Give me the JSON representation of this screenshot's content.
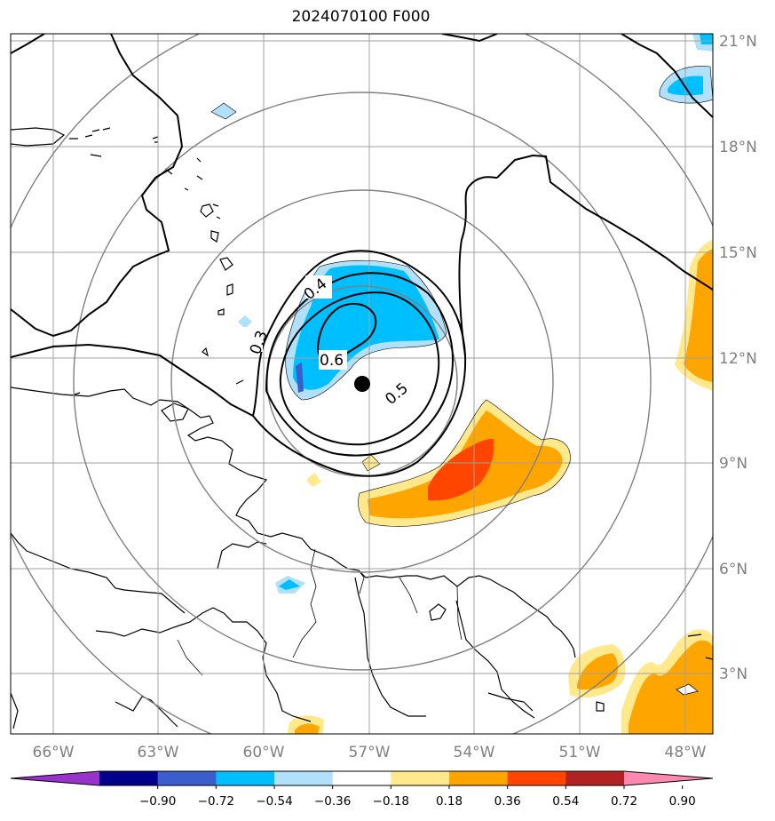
{
  "title": "2024070100 F000",
  "lon_labels": [
    "66°W",
    "63°W",
    "60°W",
    "57°W",
    "54°W",
    "51°W",
    "48°W"
  ],
  "lat_labels": [
    "21°N",
    "18°N",
    "15°N",
    "12°N",
    "9°N",
    "6°N",
    "3°N"
  ],
  "contour_labels": [
    "0.3",
    "0.4",
    "0.5",
    "0.6"
  ],
  "colorbar": {
    "ticks": [
      "−0.90",
      "−0.72",
      "−0.54",
      "−0.36",
      "−0.18",
      "0.18",
      "0.36",
      "0.54",
      "0.72",
      "0.90"
    ],
    "colors": [
      "#9932cc",
      "#00008b",
      "#3a5fcd",
      "#00bfff",
      "#b0e0fa",
      "#ffffff",
      "#ffe98c",
      "#ffa500",
      "#ff4500",
      "#b22222",
      "#ff88b0"
    ]
  },
  "center_marker": {
    "lon": -57.2,
    "lat": 11.3
  }
}
